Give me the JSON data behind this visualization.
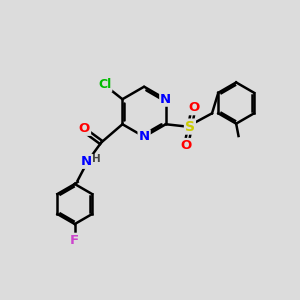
{
  "bg_color": "#dcdcdc",
  "bond_color": "#000000",
  "bond_width": 1.8,
  "atom_colors": {
    "N": "#0000ff",
    "O": "#ff0000",
    "S": "#cccc00",
    "Cl": "#00bb00",
    "F": "#cc44cc",
    "H": "#444444",
    "C": "#000000"
  },
  "font_size": 8.5,
  "fig_size": [
    3.0,
    3.0
  ],
  "dpi": 100
}
